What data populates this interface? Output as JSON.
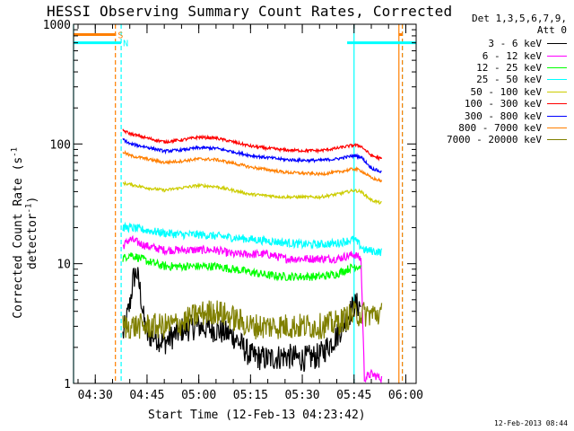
{
  "chart_data": {
    "type": "line",
    "title": "HESSI Observing Summary Count Rates, Corrected",
    "xlabel": "Start Time (12-Feb-13 04:23:42)",
    "ylabel_main": "Corrected Count Rate (s",
    "ylabel_exp": "-1",
    "ylabel_tail": " detector",
    "ylabel_end": ")",
    "yscale": "log",
    "ylim": [
      1,
      1000
    ],
    "y_ticks": [
      "1",
      "10",
      "100",
      "1000"
    ],
    "x_range": [
      "04:23:42",
      "06:03:00"
    ],
    "x_ticks": [
      "04:30",
      "04:45",
      "05:00",
      "05:15",
      "05:30",
      "05:45",
      "06:00"
    ],
    "grid": false,
    "legend_placement": "right-outside",
    "legend_header": [
      "Det 1,3,5,6,7,9,",
      "Att 0"
    ],
    "flags": [
      {
        "label": "S",
        "color": "#ff7f00",
        "start": "04:23:42",
        "end": "04:36:00",
        "value": 820
      },
      {
        "label": "N",
        "color": "#00ffff",
        "start": "04:23:42",
        "end": "04:37:30",
        "value": 700
      },
      {
        "label": "",
        "color": "#00ffff",
        "start": "05:43:00",
        "end": "06:03:00",
        "value": 700
      },
      {
        "label": "",
        "color": "#ff7f00",
        "start": "05:58:00",
        "end": "05:59:00",
        "value": 820
      }
    ],
    "markers": [
      {
        "time": "04:23:42",
        "color": "#00ffff",
        "style": "solid"
      },
      {
        "time": "04:35:50",
        "color": "#ff7f00",
        "style": "dashed"
      },
      {
        "time": "04:37:30",
        "color": "#00ffff",
        "style": "dashed"
      },
      {
        "time": "05:45:00",
        "color": "#00ffff",
        "style": "solid"
      },
      {
        "time": "05:58:00",
        "color": "#ff7f00",
        "style": "solid"
      },
      {
        "time": "05:59:00",
        "color": "#00ffff",
        "style": "dashed"
      },
      {
        "time": "05:59:00",
        "color": "#ff7f00",
        "style": "dashed"
      }
    ],
    "series": [
      {
        "name": "3 - 6 keV",
        "color": "#000000",
        "x": [
          "04:38",
          "04:40",
          "04:41",
          "04:42",
          "04:43",
          "04:44",
          "04:45",
          "04:47",
          "04:50",
          "04:55",
          "05:00",
          "05:05",
          "05:10",
          "05:15",
          "05:20",
          "05:25",
          "05:30",
          "05:35",
          "05:40",
          "05:45",
          "05:47"
        ],
        "values": [
          2.5,
          4.5,
          7.5,
          8.5,
          6,
          3.5,
          2.5,
          2.5,
          2.2,
          2.8,
          3,
          2.8,
          2.5,
          1.7,
          1.6,
          1.7,
          1.6,
          1.7,
          2.5,
          4.5,
          4.5
        ]
      },
      {
        "name": "6 - 12 keV",
        "color": "#ff00ff",
        "x": [
          "04:38",
          "04:40",
          "04:45",
          "04:50",
          "04:55",
          "05:00",
          "05:05",
          "05:10",
          "05:15",
          "05:20",
          "05:25",
          "05:30",
          "05:35",
          "05:40",
          "05:45",
          "05:47",
          "05:48",
          "05:50",
          "05:53"
        ],
        "values": [
          14,
          16,
          14,
          13,
          13,
          13,
          13,
          12,
          12,
          12,
          11,
          11,
          11,
          11,
          12,
          11,
          1.1,
          1.2,
          1.1
        ]
      },
      {
        "name": "12 - 25 keV",
        "color": "#00ff00",
        "x": [
          "04:38",
          "04:40",
          "04:45",
          "04:50",
          "04:55",
          "05:00",
          "05:05",
          "05:10",
          "05:15",
          "05:20",
          "05:25",
          "05:30",
          "05:35",
          "05:40",
          "05:45",
          "05:47"
        ],
        "values": [
          11,
          12,
          10.5,
          9.5,
          9.5,
          9.5,
          9.5,
          9,
          8.5,
          8,
          7.8,
          7.8,
          7.8,
          8.2,
          9.5,
          9.5
        ]
      },
      {
        "name": "25 - 50 keV",
        "color": "#00ffff",
        "x": [
          "04:38",
          "04:40",
          "04:45",
          "04:50",
          "04:55",
          "05:00",
          "05:05",
          "05:10",
          "05:15",
          "05:20",
          "05:25",
          "05:30",
          "05:35",
          "05:40",
          "05:45",
          "05:48",
          "05:53"
        ],
        "values": [
          20,
          20,
          19,
          18,
          17.5,
          17.5,
          17,
          16.5,
          16,
          15.5,
          15,
          14.5,
          14.5,
          14.8,
          16,
          13,
          12.5
        ]
      },
      {
        "name": "50 - 100 keV",
        "color": "#cccc00",
        "x": [
          "04:38",
          "04:40",
          "04:45",
          "04:50",
          "04:55",
          "05:00",
          "05:05",
          "05:10",
          "05:15",
          "05:20",
          "05:25",
          "05:30",
          "05:35",
          "05:40",
          "05:45",
          "05:47",
          "05:50",
          "05:53"
        ],
        "values": [
          47,
          46,
          43,
          41,
          43,
          45,
          44,
          41,
          38,
          37,
          36,
          36,
          36,
          38,
          41,
          40,
          34,
          32
        ]
      },
      {
        "name": "100 - 300 keV",
        "color": "#ff0000",
        "x": [
          "04:38",
          "04:40",
          "04:45",
          "04:50",
          "04:55",
          "05:00",
          "05:05",
          "05:10",
          "05:15",
          "05:20",
          "05:25",
          "05:30",
          "05:35",
          "05:40",
          "05:45",
          "05:47",
          "05:50",
          "05:53"
        ],
        "values": [
          130,
          122,
          112,
          104,
          108,
          114,
          112,
          104,
          96,
          92,
          89,
          88,
          88,
          92,
          98,
          96,
          80,
          75
        ]
      },
      {
        "name": "300 - 800 keV",
        "color": "#0000ff",
        "x": [
          "04:38",
          "04:40",
          "04:45",
          "04:50",
          "04:55",
          "05:00",
          "05:05",
          "05:10",
          "05:15",
          "05:20",
          "05:25",
          "05:30",
          "05:35",
          "05:40",
          "05:45",
          "05:47",
          "05:50",
          "05:53"
        ],
        "values": [
          110,
          100,
          94,
          87,
          89,
          93,
          92,
          86,
          80,
          77,
          74,
          73,
          73,
          75,
          80,
          78,
          63,
          58
        ]
      },
      {
        "name": "800 - 7000 keV",
        "color": "#ff7f00",
        "x": [
          "04:38",
          "04:40",
          "04:45",
          "04:50",
          "04:55",
          "05:00",
          "05:05",
          "05:10",
          "05:15",
          "05:20",
          "05:25",
          "05:30",
          "05:35",
          "05:40",
          "05:45",
          "05:47",
          "05:50",
          "05:53"
        ],
        "values": [
          86,
          80,
          75,
          70,
          72,
          75,
          74,
          69,
          64,
          61,
          58,
          57,
          56,
          58,
          62,
          60,
          52,
          49
        ]
      },
      {
        "name": "7000 - 20000 keV",
        "color": "#808000",
        "x": [
          "04:38",
          "04:40",
          "04:45",
          "04:50",
          "04:55",
          "05:00",
          "05:05",
          "05:10",
          "05:15",
          "05:20",
          "05:25",
          "05:30",
          "05:35",
          "05:40",
          "05:45",
          "05:50",
          "05:53"
        ],
        "values": [
          3,
          3,
          3,
          3,
          3.2,
          3.8,
          4,
          3.5,
          3,
          3,
          3,
          3,
          3,
          3.2,
          3.8,
          3.8,
          3.8
        ]
      }
    ],
    "timestamp": "12-Feb-2013 08:44"
  }
}
